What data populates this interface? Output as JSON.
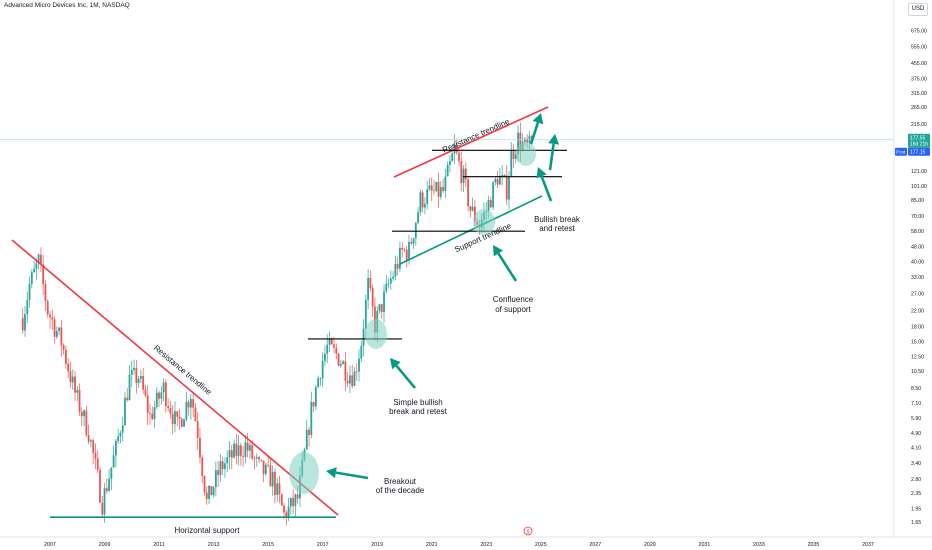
{
  "header": {
    "symbol_title": "Advanced Micro Devices Inc, 1M, NASDAQ",
    "currency": "USD"
  },
  "price_tags": {
    "last_price": "177.55",
    "countdown": "16d 21h",
    "post_label": "Post",
    "post_price": "177.15"
  },
  "colors": {
    "up": "#26a69a",
    "down": "#ef5350",
    "resistance": "#f23645",
    "support_line": "#089981",
    "arrow": "#089981",
    "circle": "#7ecfbf",
    "price_line": "#b2dfdb",
    "last_tag": "#26a69a",
    "post_tag": "#2962ff"
  },
  "chart_data": {
    "type": "candlestick",
    "title": "Advanced Micro Devices Inc, 1M, NASDAQ",
    "interval": "1M",
    "y_scale": "log",
    "y_ticks": [
      "675.00",
      "555.00",
      "455.00",
      "375.00",
      "315.00",
      "265.00",
      "215.00",
      "121.00",
      "101.00",
      "85.00",
      "70.00",
      "58.00",
      "48.00",
      "40.00",
      "33.00",
      "27.00",
      "22.00",
      "18.00",
      "15.00",
      "12.50",
      "10.50",
      "8.50",
      "7.10",
      "5.90",
      "4.90",
      "4.10",
      "3.40",
      "2.80",
      "2.35",
      "1.95",
      "1.65"
    ],
    "x_ticks": [
      "2007",
      "2009",
      "2011",
      "2013",
      "2015",
      "2017",
      "2019",
      "2021",
      "2023",
      "2025",
      "2027",
      "2029",
      "2031",
      "2033",
      "2035",
      "2037"
    ],
    "ylim": [
      1.5,
      900
    ],
    "xlim": [
      "2006-01",
      "2038-01"
    ],
    "close_path": [
      [
        "2006-01",
        20
      ],
      [
        "2006-04",
        30
      ],
      [
        "2006-08",
        40
      ],
      [
        "2006-12",
        22
      ],
      [
        "2007-06",
        15
      ],
      [
        "2007-12",
        8
      ],
      [
        "2008-06",
        5
      ],
      [
        "2008-12",
        2.1
      ],
      [
        "2009-06",
        4
      ],
      [
        "2009-12",
        9.5
      ],
      [
        "2010-04",
        9.8
      ],
      [
        "2010-09",
        6
      ],
      [
        "2011-03",
        8.5
      ],
      [
        "2011-09",
        5.3
      ],
      [
        "2012-03",
        8
      ],
      [
        "2012-06",
        5
      ],
      [
        "2012-10",
        2.1
      ],
      [
        "2013-04",
        3.2
      ],
      [
        "2013-10",
        3.8
      ],
      [
        "2014-03",
        4.2
      ],
      [
        "2014-09",
        3.2
      ],
      [
        "2015-03",
        2.8
      ],
      [
        "2015-08",
        1.8
      ],
      [
        "2016-02",
        2.2
      ],
      [
        "2016-08",
        6.5
      ],
      [
        "2016-12",
        11
      ],
      [
        "2017-03",
        14
      ],
      [
        "2017-08",
        12.5
      ],
      [
        "2017-12",
        10.3
      ],
      [
        "2018-03",
        10
      ],
      [
        "2018-06",
        15
      ],
      [
        "2018-09",
        30
      ],
      [
        "2018-12",
        18.5
      ],
      [
        "2019-06",
        30
      ],
      [
        "2019-12",
        45
      ],
      [
        "2020-03",
        46
      ],
      [
        "2020-08",
        85
      ],
      [
        "2020-12",
        92
      ],
      [
        "2021-06",
        94
      ],
      [
        "2021-11",
        158
      ],
      [
        "2022-03",
        110
      ],
      [
        "2022-06",
        76
      ],
      [
        "2022-10",
        63
      ],
      [
        "2023-01",
        75
      ],
      [
        "2023-06",
        114
      ],
      [
        "2023-10",
        98
      ],
      [
        "2023-12",
        147
      ],
      [
        "2024-03",
        180
      ],
      [
        "2024-06",
        162
      ],
      [
        "2024-09",
        164
      ]
    ],
    "annotations": [
      {
        "text": "Resistance trendline",
        "kind": "label"
      },
      {
        "text": "Resistance trendline",
        "kind": "label"
      },
      {
        "text": "Support trendline",
        "kind": "label"
      },
      {
        "text": "Horizontal support",
        "kind": "label"
      },
      {
        "text": "Breakout",
        "kind": "note"
      },
      {
        "text": "of the decade",
        "kind": "note"
      },
      {
        "text": "Simple bullish",
        "kind": "note"
      },
      {
        "text": "break and retest",
        "kind": "note"
      },
      {
        "text": "Confluence",
        "kind": "note"
      },
      {
        "text": "of support",
        "kind": "note"
      },
      {
        "text": "Bullish break",
        "kind": "note"
      },
      {
        "text": "and retest",
        "kind": "note"
      }
    ],
    "levels": {
      "horizontal_support": 1.75,
      "retest_level_1": 15.5,
      "retest_level_2": 58,
      "retest_level_3": 113,
      "retest_level_4": 156
    }
  }
}
